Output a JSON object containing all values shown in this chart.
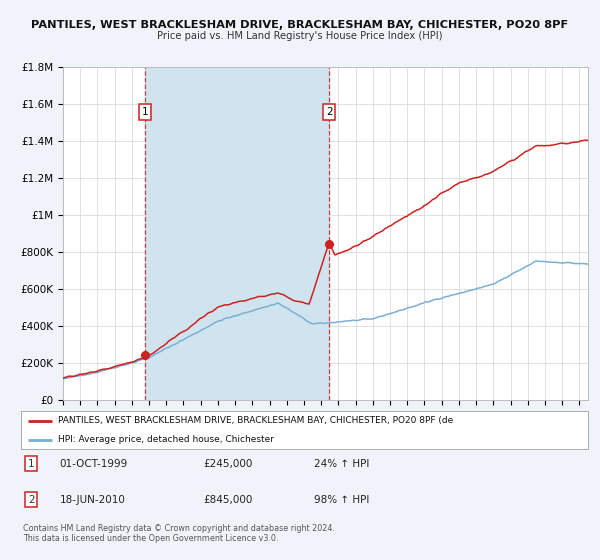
{
  "title": "PANTILES, WEST BRACKLESHAM DRIVE, BRACKLESHAM BAY, CHICHESTER, PO20 8PF",
  "subtitle": "Price paid vs. HM Land Registry's House Price Index (HPI)",
  "legend_line1": "PANTILES, WEST BRACKLESHAM DRIVE, BRACKLESHAM BAY, CHICHESTER, PO20 8PF (de",
  "legend_line2": "HPI: Average price, detached house, Chichester",
  "ylim": [
    0,
    1800000
  ],
  "xlim_start": 1995.0,
  "xlim_end": 2025.5,
  "hpi_color": "#7bafd4",
  "price_color": "#cc2222",
  "sale1_date": 1999.75,
  "sale1_price": 245000,
  "sale1_label": "1",
  "sale2_date": 2010.46,
  "sale2_price": 845000,
  "sale2_label": "2",
  "annotation1_date": "01-OCT-1999",
  "annotation1_price": "£245,000",
  "annotation1_pct": "24% ↑ HPI",
  "annotation2_date": "18-JUN-2010",
  "annotation2_price": "£845,000",
  "annotation2_pct": "98% ↑ HPI",
  "footnote1": "Contains HM Land Registry data © Crown copyright and database right 2024.",
  "footnote2": "This data is licensed under the Open Government Licence v3.0.",
  "bg_color": "#f0f4fa",
  "plot_bg_color": "#ffffff",
  "ytick_labels": [
    "£0",
    "£200K",
    "£400K",
    "£600K",
    "£800K",
    "£1M",
    "£1.2M",
    "£1.4M",
    "£1.6M",
    "£1.8M"
  ],
  "ytick_values": [
    0,
    200000,
    400000,
    600000,
    800000,
    1000000,
    1200000,
    1400000,
    1600000,
    1800000
  ],
  "shade_color": "#d0e4f0",
  "grid_color": "#d5d5d5"
}
